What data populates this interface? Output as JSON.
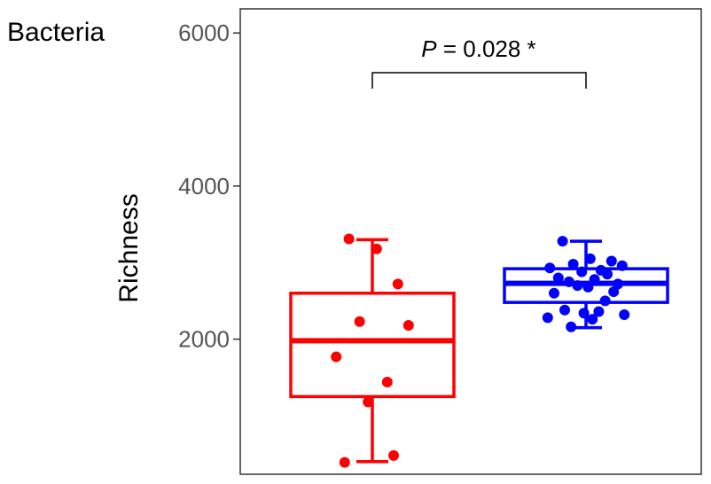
{
  "chart_data": {
    "type": "box",
    "panel_label": "Bacteria",
    "xlabel": "",
    "ylabel": "Richness",
    "ylim": [
      0,
      6150
    ],
    "yticks": [
      2000,
      4000,
      6000
    ],
    "ytick_labels": [
      "2000",
      "4000",
      "6000"
    ],
    "grid": false,
    "legend": "none",
    "annotation": {
      "p_symbol": "P",
      "p_text": " = 0.028 *",
      "between_groups": [
        0,
        1
      ]
    },
    "groups": [
      {
        "color": "#ff0000",
        "whisker_low": 400,
        "q1": 1250,
        "median": 1980,
        "q3": 2600,
        "whisker_high": 3300,
        "points": [
          3310,
          3180,
          2720,
          2230,
          2180,
          1770,
          1440,
          1180,
          480,
          390
        ]
      },
      {
        "color": "#0000ff",
        "whisker_low": 2150,
        "q1": 2480,
        "median": 2730,
        "q3": 2920,
        "whisker_high": 3280,
        "points": [
          3280,
          3050,
          3020,
          2980,
          2960,
          2930,
          2900,
          2880,
          2850,
          2800,
          2780,
          2750,
          2720,
          2700,
          2680,
          2620,
          2600,
          2500,
          2380,
          2360,
          2340,
          2320,
          2280,
          2260,
          2160
        ]
      }
    ]
  }
}
